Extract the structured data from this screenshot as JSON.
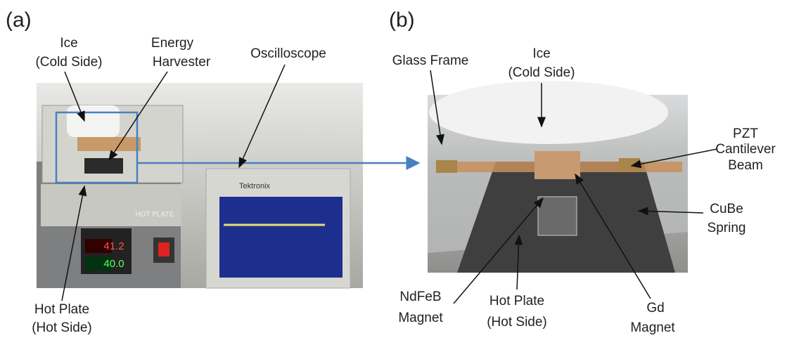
{
  "panel_a": {
    "label": "(a)",
    "ice": [
      "Ice",
      "(Cold Side)"
    ],
    "energy_harvester": [
      "Energy",
      "Harvester"
    ],
    "oscilloscope": "Oscilloscope",
    "hot_plate": [
      "Hot Plate",
      "(Hot Side)"
    ],
    "photo_texts": {
      "plate_brand": "HOT PLATE",
      "temp_top": "41.2",
      "temp_bottom": "40.0",
      "scope_brand": "Tektronix"
    }
  },
  "panel_b": {
    "label": "(b)",
    "glass_frame": "Glass Frame",
    "ice": [
      "Ice",
      "(Cold Side)"
    ],
    "pzt": [
      "PZT",
      "Cantilever",
      "Beam"
    ],
    "cube": [
      "CuBe",
      "Spring"
    ],
    "ndfeb": [
      "NdFeB",
      "Magnet"
    ],
    "hot_plate": [
      "Hot Plate",
      "(Hot Side)"
    ],
    "gd": [
      "Gd",
      "Magnet"
    ]
  }
}
